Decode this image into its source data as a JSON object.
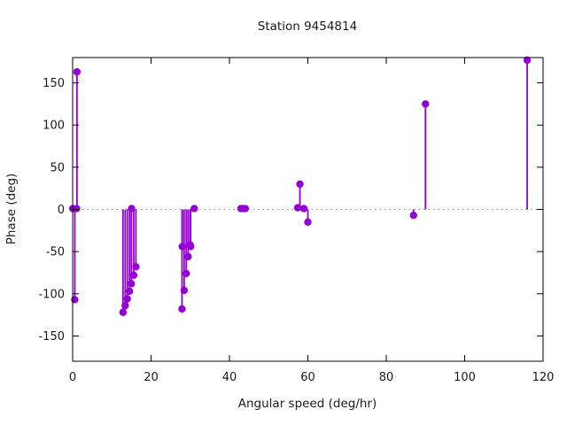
{
  "chart_data": {
    "type": "scatter",
    "style": "stem",
    "title": "Station 9454814",
    "xlabel": "Angular speed (deg/hr)",
    "ylabel": "Phase (deg)",
    "xlim": [
      0,
      120
    ],
    "ylim": [
      -180,
      180
    ],
    "xticks": [
      0,
      20,
      40,
      60,
      80,
      100,
      120
    ],
    "yticks": [
      -150,
      -100,
      -50,
      0,
      50,
      100,
      150
    ],
    "grid": "zero-line-only",
    "zero_line_color": "#888888",
    "legend_position": "none",
    "background_color": "#ffffff",
    "axis_color": "#000000",
    "series": [
      {
        "name": "Phase",
        "color": "#9400D3",
        "marker": "filled-circle",
        "points": [
          [
            0.04,
            1
          ],
          [
            0.54,
            -107
          ],
          [
            1.02,
            1
          ],
          [
            1.1,
            163
          ],
          [
            12.85,
            -122
          ],
          [
            13.4,
            -114
          ],
          [
            13.94,
            -106
          ],
          [
            14.5,
            -97
          ],
          [
            14.96,
            -88
          ],
          [
            15.04,
            1
          ],
          [
            15.59,
            -78
          ],
          [
            16.14,
            -68
          ],
          [
            27.9,
            -118
          ],
          [
            27.97,
            -44
          ],
          [
            28.44,
            -96
          ],
          [
            28.98,
            -76
          ],
          [
            29.46,
            -56
          ],
          [
            29.96,
            -42
          ],
          [
            30.08,
            -44
          ],
          [
            31.02,
            1
          ],
          [
            42.93,
            1
          ],
          [
            43.48,
            1
          ],
          [
            44.03,
            1
          ],
          [
            57.42,
            2
          ],
          [
            57.97,
            30
          ],
          [
            58.98,
            1
          ],
          [
            60.0,
            -15
          ],
          [
            86.95,
            -7
          ],
          [
            90.0,
            125
          ],
          [
            115.94,
            177
          ]
        ]
      }
    ]
  }
}
